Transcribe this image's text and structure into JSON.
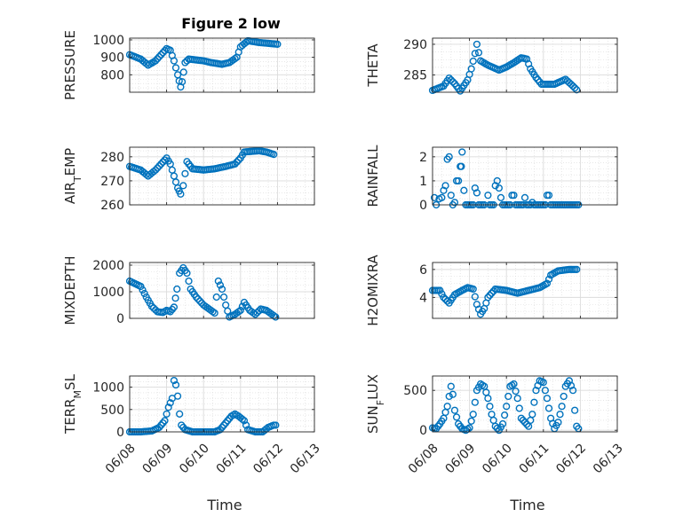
{
  "chart_data": {
    "type": "scatter",
    "title": "Figure 2 low",
    "marker_color": "#0072BD",
    "x_tick_labels": [
      "06/08",
      "06/09",
      "06/10",
      "06/11",
      "06/12",
      "06/13"
    ],
    "xlabel": "Time",
    "grid": true,
    "panels": [
      {
        "id": "pressure",
        "ylabel": "PRESSURE",
        "ylim": [
          700,
          1010
        ],
        "yticks": [
          {
            "v": 800,
            "label": "800"
          },
          {
            "v": 900,
            "label": "900"
          },
          {
            "v": 1000,
            "label": "1000"
          }
        ],
        "show_x_ticks": false,
        "anchors": [
          [
            0,
            915
          ],
          [
            0.3,
            890
          ],
          [
            0.5,
            855
          ],
          [
            0.7,
            880
          ],
          [
            0.85,
            915
          ],
          [
            1.0,
            950
          ],
          [
            1.1,
            940
          ],
          [
            1.2,
            880
          ],
          [
            1.3,
            800
          ],
          [
            1.38,
            730
          ],
          [
            1.42,
            760
          ],
          [
            1.5,
            870
          ],
          [
            1.6,
            890
          ],
          [
            2.0,
            880
          ],
          [
            2.2,
            870
          ],
          [
            2.5,
            860
          ],
          [
            2.7,
            870
          ],
          [
            2.9,
            900
          ],
          [
            3.0,
            960
          ],
          [
            3.2,
            995
          ],
          [
            3.5,
            985
          ],
          [
            4.0,
            975
          ]
        ]
      },
      {
        "id": "theta",
        "ylabel": "THETA",
        "ylim": [
          282.2,
          291
        ],
        "yticks": [
          {
            "v": 285,
            "label": "285"
          },
          {
            "v": 290,
            "label": "290"
          }
        ],
        "show_x_ticks": false,
        "anchors": [
          [
            0,
            282.5
          ],
          [
            0.3,
            283.2
          ],
          [
            0.45,
            284.5
          ],
          [
            0.6,
            283.6
          ],
          [
            0.75,
            282.4
          ],
          [
            0.95,
            284.2
          ],
          [
            1.05,
            286.0
          ],
          [
            1.15,
            288.5
          ],
          [
            1.2,
            290.0
          ],
          [
            1.3,
            287.3
          ],
          [
            1.5,
            286.6
          ],
          [
            1.8,
            285.8
          ],
          [
            2.0,
            286.3
          ],
          [
            2.2,
            287.0
          ],
          [
            2.4,
            287.8
          ],
          [
            2.55,
            287.6
          ],
          [
            2.65,
            286.0
          ],
          [
            2.8,
            284.6
          ],
          [
            2.95,
            283.5
          ],
          [
            3.3,
            283.5
          ],
          [
            3.6,
            284.3
          ],
          [
            3.8,
            283.2
          ],
          [
            3.9,
            282.6
          ]
        ]
      },
      {
        "id": "air_temp",
        "ylabel": "AIR_TEMP",
        "ylim": [
          260,
          284
        ],
        "yticks": [
          {
            "v": 260,
            "label": "260"
          },
          {
            "v": 270,
            "label": "270"
          },
          {
            "v": 280,
            "label": "280"
          }
        ],
        "show_x_ticks": false,
        "anchors": [
          [
            0,
            276
          ],
          [
            0.3,
            274.5
          ],
          [
            0.5,
            272
          ],
          [
            0.7,
            274.5
          ],
          [
            1.0,
            279.5
          ],
          [
            1.1,
            277
          ],
          [
            1.2,
            272
          ],
          [
            1.3,
            267
          ],
          [
            1.38,
            264.5
          ],
          [
            1.45,
            268
          ],
          [
            1.55,
            278
          ],
          [
            1.7,
            275
          ],
          [
            2.0,
            274.5
          ],
          [
            2.3,
            275
          ],
          [
            2.6,
            276
          ],
          [
            2.85,
            277
          ],
          [
            3.0,
            279.5
          ],
          [
            3.1,
            282
          ],
          [
            3.5,
            282.5
          ],
          [
            3.7,
            282
          ],
          [
            3.9,
            281
          ]
        ]
      },
      {
        "id": "rainfall",
        "ylabel": "RAINFALL",
        "ylim": [
          0,
          2.4
        ],
        "yticks": [
          {
            "v": 0,
            "label": "0"
          },
          {
            "v": 1,
            "label": "1"
          },
          {
            "v": 2,
            "label": "2"
          }
        ],
        "show_x_ticks": false,
        "points": [
          [
            0.05,
            0.3
          ],
          [
            0.1,
            0.0
          ],
          [
            0.18,
            0.25
          ],
          [
            0.25,
            0.3
          ],
          [
            0.3,
            0.6
          ],
          [
            0.35,
            0.8
          ],
          [
            0.4,
            1.9
          ],
          [
            0.45,
            2.0
          ],
          [
            0.5,
            0.4
          ],
          [
            0.55,
            0.0
          ],
          [
            0.6,
            0.1
          ],
          [
            0.65,
            1.0
          ],
          [
            0.7,
            1.0
          ],
          [
            0.75,
            1.6
          ],
          [
            0.78,
            1.6
          ],
          [
            0.8,
            2.2
          ],
          [
            0.85,
            0.6
          ],
          [
            0.9,
            0.0
          ],
          [
            0.95,
            0.0
          ],
          [
            1.0,
            0.0
          ],
          [
            1.05,
            0.0
          ],
          [
            1.1,
            0.0
          ],
          [
            1.15,
            0.7
          ],
          [
            1.2,
            0.5
          ],
          [
            1.25,
            0.0
          ],
          [
            1.3,
            0.0
          ],
          [
            1.35,
            0.0
          ],
          [
            1.4,
            0.0
          ],
          [
            1.5,
            0.4
          ],
          [
            1.55,
            0.0
          ],
          [
            1.6,
            0.0
          ],
          [
            1.65,
            0.0
          ],
          [
            1.7,
            0.8
          ],
          [
            1.75,
            1.0
          ],
          [
            1.8,
            0.7
          ],
          [
            1.85,
            0.3
          ],
          [
            1.9,
            0.0
          ],
          [
            1.95,
            0.0
          ],
          [
            2.0,
            0.0
          ],
          [
            2.05,
            0.0
          ],
          [
            2.1,
            0.0
          ],
          [
            2.15,
            0.4
          ],
          [
            2.2,
            0.4
          ],
          [
            2.25,
            0.0
          ],
          [
            2.3,
            0.0
          ],
          [
            2.35,
            0.0
          ],
          [
            2.4,
            0.0
          ],
          [
            2.45,
            0.0
          ],
          [
            2.5,
            0.3
          ],
          [
            2.55,
            0.0
          ],
          [
            2.6,
            0.0
          ],
          [
            2.65,
            0.0
          ],
          [
            2.7,
            0.1
          ],
          [
            2.75,
            0.0
          ],
          [
            2.8,
            0.0
          ],
          [
            2.85,
            0.0
          ],
          [
            2.9,
            0.0
          ],
          [
            2.95,
            0.0
          ],
          [
            3.0,
            0.0
          ],
          [
            3.05,
            0.0
          ],
          [
            3.1,
            0.4
          ],
          [
            3.15,
            0.4
          ],
          [
            3.2,
            0.0
          ],
          [
            3.25,
            0.0
          ],
          [
            3.3,
            0.0
          ],
          [
            3.35,
            0.0
          ],
          [
            3.4,
            0.0
          ],
          [
            3.45,
            0.0
          ],
          [
            3.5,
            0.0
          ],
          [
            3.55,
            0.0
          ],
          [
            3.6,
            0.0
          ],
          [
            3.65,
            0.0
          ],
          [
            3.7,
            0.0
          ],
          [
            3.75,
            0.0
          ],
          [
            3.8,
            0.0
          ],
          [
            3.85,
            0.0
          ],
          [
            3.9,
            0.0
          ],
          [
            3.95,
            0.0
          ]
        ]
      },
      {
        "id": "mixdepth",
        "ylabel": "MIXDEPTH",
        "ylim": [
          0,
          2100
        ],
        "yticks": [
          {
            "v": 0,
            "label": "0"
          },
          {
            "v": 1000,
            "label": "1000"
          },
          {
            "v": 2000,
            "label": "2000"
          }
        ],
        "show_x_ticks": false,
        "anchors": [
          [
            0,
            1400
          ],
          [
            0.15,
            1300
          ],
          [
            0.3,
            1200
          ],
          [
            0.45,
            800
          ],
          [
            0.6,
            450
          ],
          [
            0.75,
            250
          ],
          [
            0.9,
            220
          ],
          [
            1.0,
            300
          ],
          [
            1.1,
            250
          ],
          [
            1.2,
            420
          ],
          [
            1.28,
            1100
          ],
          [
            1.35,
            1700
          ],
          [
            1.45,
            1900
          ],
          [
            1.55,
            1700
          ],
          [
            1.65,
            1100
          ],
          [
            1.8,
            800
          ],
          [
            2.0,
            500
          ],
          [
            2.2,
            300
          ],
          [
            2.3,
            200
          ],
          [
            2.4,
            1400
          ],
          [
            2.5,
            1100
          ],
          [
            2.6,
            500
          ],
          [
            2.7,
            50
          ],
          [
            2.85,
            150
          ],
          [
            3.0,
            300
          ],
          [
            3.1,
            600
          ],
          [
            3.25,
            300
          ],
          [
            3.4,
            150
          ],
          [
            3.55,
            350
          ],
          [
            3.7,
            300
          ],
          [
            3.85,
            150
          ],
          [
            3.95,
            50
          ]
        ]
      },
      {
        "id": "h2omixra",
        "ylabel": "H2OMIXRA",
        "ylim": [
          2.5,
          6.5
        ],
        "yticks": [
          {
            "v": 4,
            "label": "4"
          },
          {
            "v": 6,
            "label": "6"
          }
        ],
        "show_x_ticks": false,
        "anchors": [
          [
            0,
            4.5
          ],
          [
            0.2,
            4.5
          ],
          [
            0.3,
            4.0
          ],
          [
            0.45,
            3.6
          ],
          [
            0.6,
            4.2
          ],
          [
            0.8,
            4.5
          ],
          [
            0.95,
            4.7
          ],
          [
            1.1,
            4.6
          ],
          [
            1.2,
            3.5
          ],
          [
            1.3,
            2.8
          ],
          [
            1.4,
            3.2
          ],
          [
            1.5,
            4.0
          ],
          [
            1.7,
            4.6
          ],
          [
            2.0,
            4.5
          ],
          [
            2.3,
            4.3
          ],
          [
            2.6,
            4.5
          ],
          [
            2.9,
            4.7
          ],
          [
            3.1,
            5.0
          ],
          [
            3.2,
            5.6
          ],
          [
            3.4,
            5.9
          ],
          [
            3.7,
            6.0
          ],
          [
            3.9,
            6.0
          ]
        ]
      },
      {
        "id": "terr_msl",
        "ylabel": "TERR_MSL",
        "ylim": [
          0,
          1250
        ],
        "yticks": [
          {
            "v": 0,
            "label": "0"
          },
          {
            "v": 500,
            "label": "500"
          },
          {
            "v": 1000,
            "label": "1000"
          }
        ],
        "show_x_ticks": true,
        "anchors": [
          [
            0,
            0
          ],
          [
            0.3,
            0
          ],
          [
            0.6,
            20
          ],
          [
            0.8,
            100
          ],
          [
            0.95,
            250
          ],
          [
            1.05,
            550
          ],
          [
            1.15,
            750
          ],
          [
            1.2,
            1150
          ],
          [
            1.25,
            1050
          ],
          [
            1.3,
            800
          ],
          [
            1.35,
            400
          ],
          [
            1.4,
            150
          ],
          [
            1.5,
            50
          ],
          [
            1.7,
            0
          ],
          [
            2.0,
            0
          ],
          [
            2.3,
            0
          ],
          [
            2.45,
            50
          ],
          [
            2.6,
            200
          ],
          [
            2.75,
            350
          ],
          [
            2.85,
            400
          ],
          [
            2.95,
            350
          ],
          [
            3.1,
            250
          ],
          [
            3.2,
            50
          ],
          [
            3.4,
            0
          ],
          [
            3.6,
            0
          ],
          [
            3.75,
            100
          ],
          [
            3.9,
            150
          ],
          [
            3.95,
            150
          ]
        ]
      },
      {
        "id": "sun_flux",
        "ylabel": "SUN_FLUX",
        "ylim": [
          -20,
          680
        ],
        "yticks": [
          {
            "v": 0,
            "label": "0"
          },
          {
            "v": 500,
            "label": "500"
          }
        ],
        "show_x_ticks": true,
        "anchors": [
          [
            0,
            30
          ],
          [
            0.1,
            20
          ],
          [
            0.2,
            80
          ],
          [
            0.3,
            150
          ],
          [
            0.4,
            300
          ],
          [
            0.5,
            550
          ],
          [
            0.55,
            450
          ],
          [
            0.6,
            250
          ],
          [
            0.7,
            80
          ],
          [
            0.8,
            20
          ],
          [
            0.9,
            0
          ],
          [
            1.0,
            30
          ],
          [
            1.1,
            200
          ],
          [
            1.2,
            500
          ],
          [
            1.3,
            580
          ],
          [
            1.4,
            550
          ],
          [
            1.5,
            400
          ],
          [
            1.6,
            200
          ],
          [
            1.7,
            50
          ],
          [
            1.8,
            0
          ],
          [
            1.9,
            80
          ],
          [
            2.0,
            300
          ],
          [
            2.1,
            550
          ],
          [
            2.2,
            580
          ],
          [
            2.3,
            400
          ],
          [
            2.4,
            150
          ],
          [
            2.5,
            100
          ],
          [
            2.6,
            50
          ],
          [
            2.7,
            200
          ],
          [
            2.8,
            500
          ],
          [
            2.9,
            620
          ],
          [
            3.0,
            600
          ],
          [
            3.1,
            400
          ],
          [
            3.2,
            150
          ],
          [
            3.3,
            20
          ],
          [
            3.4,
            100
          ],
          [
            3.5,
            300
          ],
          [
            3.6,
            550
          ],
          [
            3.7,
            620
          ],
          [
            3.8,
            500
          ],
          [
            3.85,
            250
          ],
          [
            3.9,
            50
          ],
          [
            3.95,
            20
          ]
        ]
      }
    ]
  }
}
